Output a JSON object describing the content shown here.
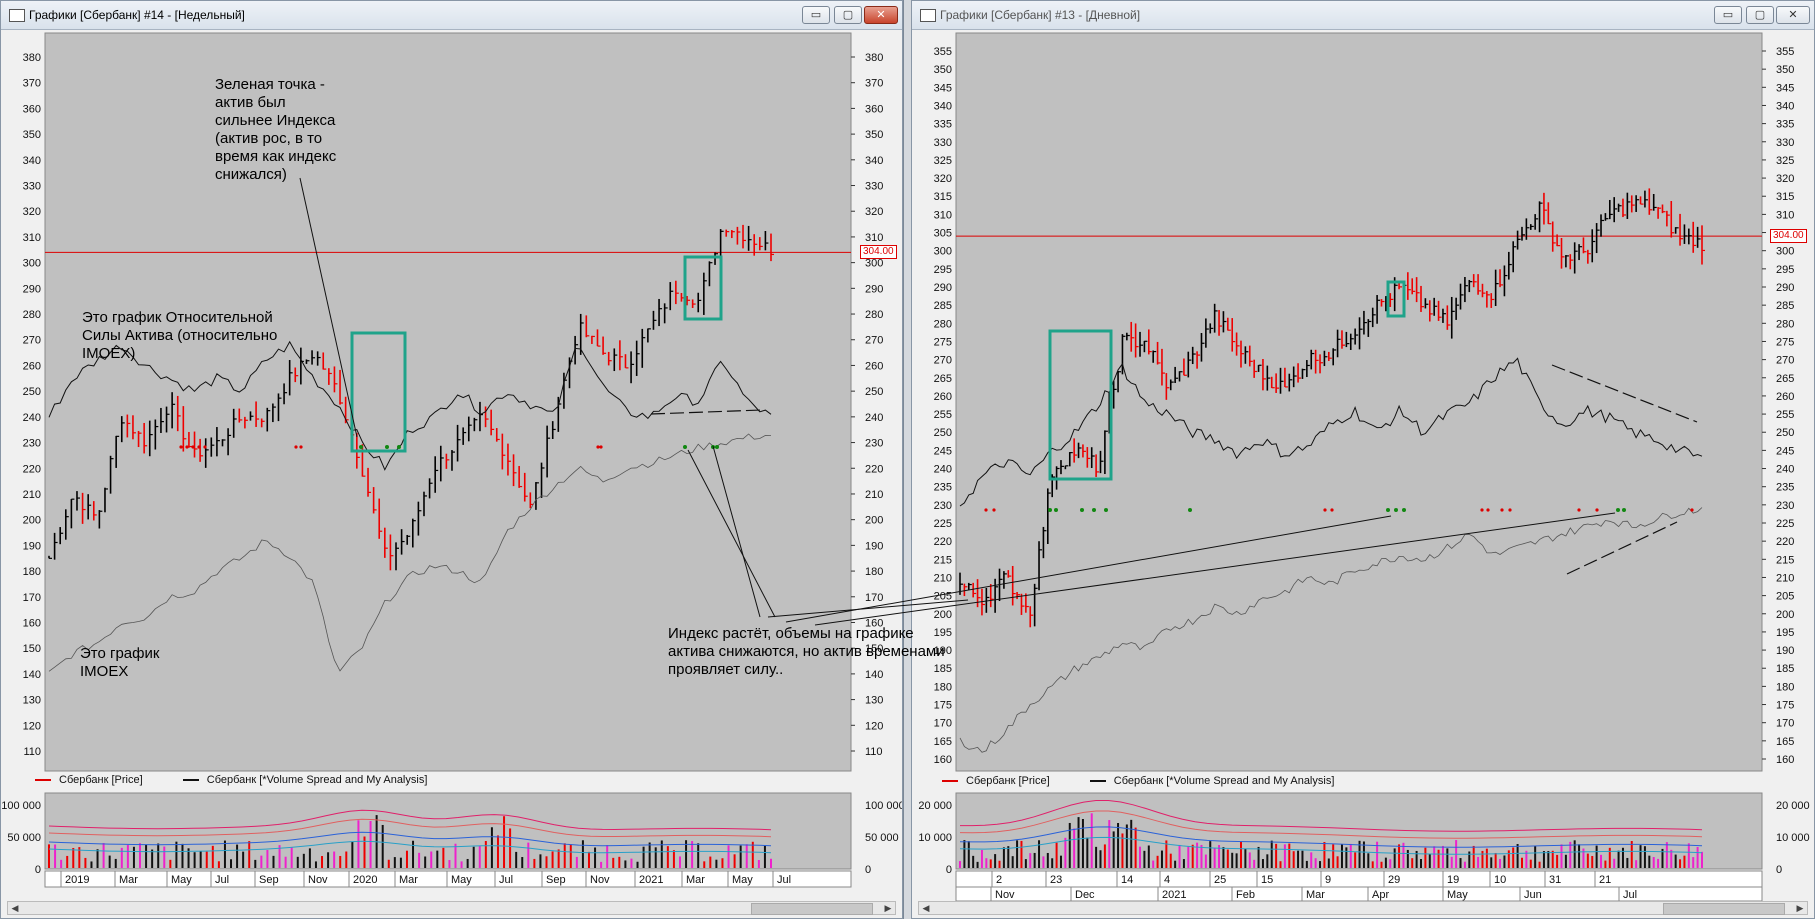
{
  "left_window": {
    "title": "Графики [Сбербанк] #14 - [Недельный]",
    "buttons": {
      "minimize": "▭",
      "maximize": "▢",
      "close": "✕"
    },
    "y_axis_left": [
      "380",
      "370",
      "360",
      "350",
      "340",
      "330",
      "320",
      "310",
      "300",
      "290",
      "280",
      "270",
      "260",
      "250",
      "240",
      "230",
      "220",
      "210",
      "200",
      "190",
      "180",
      "170",
      "160",
      "150",
      "140",
      "130",
      "120",
      "110"
    ],
    "y_axis_right": [
      "380",
      "370",
      "360",
      "350",
      "340",
      "330",
      "320",
      "310",
      "300",
      "290",
      "280",
      "270",
      "260",
      "250",
      "240",
      "230",
      "220",
      "210",
      "200",
      "190",
      "180",
      "170",
      "160",
      "150",
      "140",
      "130",
      "120",
      "110"
    ],
    "price_label": "304.00",
    "legend": {
      "price": "Сбербанк [Price]",
      "vsa": "Сбербанк [*Volume Spread and My Analysis]"
    },
    "volume_axis_left": [
      "100 000",
      "50 000",
      "0"
    ],
    "volume_axis_right": [
      "100 000",
      "50 000",
      "0"
    ],
    "x_axis": [
      "2019",
      "Mar",
      "May",
      "Jul",
      "Sep",
      "Nov",
      "2020",
      "Mar",
      "May",
      "Jul",
      "Sep",
      "Nov",
      "2021",
      "Mar",
      "May",
      "Jul"
    ]
  },
  "right_window": {
    "title": "Графики [Сбербанк] #13 - [Дневной]",
    "buttons": {
      "minimize": "▭",
      "maximize": "▢",
      "close": "✕"
    },
    "y_axis_left": [
      "355",
      "350",
      "345",
      "340",
      "335",
      "330",
      "325",
      "320",
      "315",
      "310",
      "305",
      "300",
      "295",
      "290",
      "285",
      "280",
      "275",
      "270",
      "265",
      "260",
      "255",
      "250",
      "245",
      "240",
      "235",
      "230",
      "225",
      "220",
      "215",
      "210",
      "205",
      "200",
      "195",
      "190",
      "185",
      "180",
      "175",
      "170",
      "165",
      "160"
    ],
    "y_axis_right": [
      "355",
      "350",
      "345",
      "340",
      "335",
      "330",
      "325",
      "320",
      "315",
      "310",
      "305",
      "300",
      "295",
      "290",
      "285",
      "280",
      "275",
      "270",
      "265",
      "260",
      "255",
      "250",
      "245",
      "240",
      "235",
      "230",
      "225",
      "220",
      "215",
      "210",
      "205",
      "200",
      "195",
      "190",
      "185",
      "180",
      "175",
      "170",
      "165",
      "160"
    ],
    "price_label": "304.00",
    "legend": {
      "price": "Сбербанк [Price]",
      "vsa": "Сбербанк [*Volume Spread and My Analysis]"
    },
    "volume_axis_left": [
      "20 000",
      "10 000",
      "0"
    ],
    "volume_axis_right": [
      "20 000",
      "10 000",
      "0"
    ],
    "x_axis_days": [
      "2",
      "23",
      "14",
      "4",
      "25",
      "15",
      "9",
      "29",
      "19",
      "10",
      "31",
      "21"
    ],
    "x_axis_months": [
      "Nov",
      "Dec",
      "2021",
      "Feb",
      "Mar",
      "Apr",
      "May",
      "Jun",
      "Jul"
    ]
  },
  "annotations": {
    "green_dot": "Зеленая точка -\nактив был\nсильнее Индекса\n(актив рос, в то\nвремя как индекс\nснижался)",
    "rs_chart": "Это график Относительной\nСилы Актива (относительно\nIMOEX)",
    "imoex_chart": "Это график\nIMOEX",
    "index_growth": "Индекс растёт, объемы на графике\nактива снижаются, но актив временами\nпроявляет силу.."
  },
  "colors": {
    "price_line": "#dd0000",
    "bar_up": "#000000",
    "bar_down": "#ee0000",
    "highlight": "#1fa38a",
    "chart_bg": "#c0c0c0",
    "dot_green": "#118811",
    "vol_pink": "#ee22cc"
  }
}
